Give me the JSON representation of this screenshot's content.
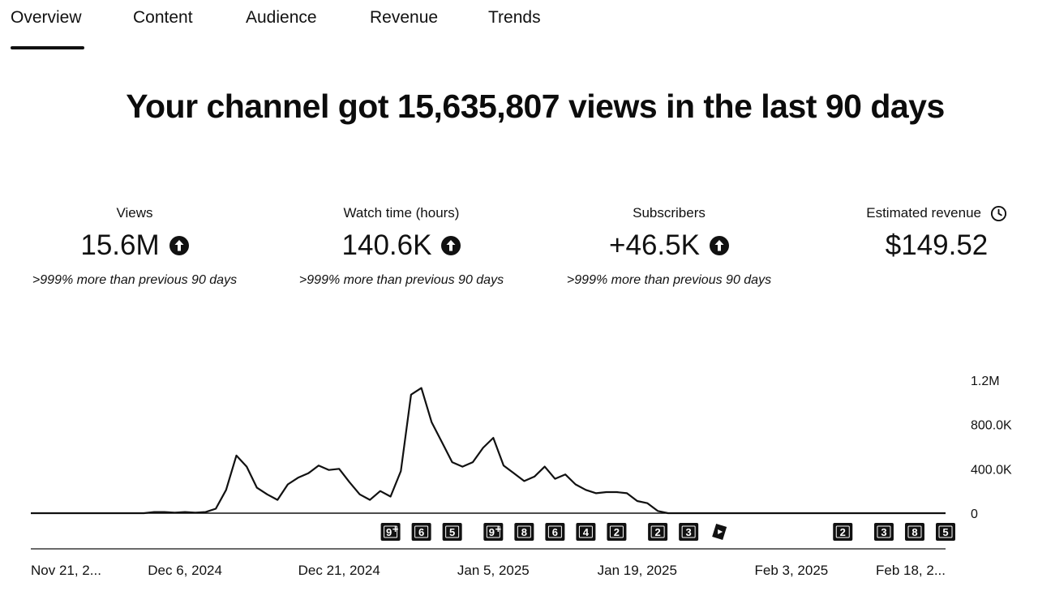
{
  "tabs": [
    {
      "label": "Overview",
      "active": true
    },
    {
      "label": "Content"
    },
    {
      "label": "Audience"
    },
    {
      "label": "Revenue"
    },
    {
      "label": "Trends"
    }
  ],
  "headline": "Your channel got 15,635,807 views in the last 90 days",
  "metrics": {
    "views": {
      "label": "Views",
      "value": "15.6M",
      "trend_icon": "arrow-up-circle-icon",
      "comparison": ">999% more than previous 90 days"
    },
    "watch_time": {
      "label": "Watch time (hours)",
      "value": "140.6K",
      "trend_icon": "arrow-up-circle-icon",
      "comparison": ">999% more than previous 90 days"
    },
    "subscribers": {
      "label": "Subscribers",
      "value": "+46.5K",
      "trend_icon": "arrow-up-circle-icon",
      "comparison": ">999% more than previous 90 days"
    },
    "revenue": {
      "label": "Estimated revenue",
      "value": "$149.52",
      "info_icon": "clock-icon"
    }
  },
  "chart_data": {
    "type": "line",
    "ylabel": "",
    "xlabel": "",
    "ylim": [
      0,
      1200000
    ],
    "y_ticks": [
      {
        "value": 0,
        "label": "0"
      },
      {
        "value": 400000,
        "label": "400.0K"
      },
      {
        "value": 800000,
        "label": "800.0K"
      },
      {
        "value": 1200000,
        "label": "1.2M"
      }
    ],
    "x_ticks": [
      {
        "day": 0,
        "label": "Nov 21, 2..."
      },
      {
        "day": 15,
        "label": "Dec 6, 2024"
      },
      {
        "day": 30,
        "label": "Dec 21, 2024"
      },
      {
        "day": 45,
        "label": "Jan 5, 2025"
      },
      {
        "day": 59,
        "label": "Jan 19, 2025"
      },
      {
        "day": 74,
        "label": "Feb 3, 2025"
      },
      {
        "day": 89,
        "label": "Feb 18, 2..."
      }
    ],
    "series": [
      {
        "values": [
          0,
          0,
          0,
          0,
          0,
          0,
          0,
          0,
          0,
          0,
          0,
          0,
          10000,
          10000,
          5000,
          10000,
          5000,
          10000,
          40000,
          210000,
          520000,
          420000,
          230000,
          170000,
          120000,
          260000,
          320000,
          360000,
          430000,
          390000,
          400000,
          280000,
          170000,
          120000,
          200000,
          150000,
          380000,
          1070000,
          1130000,
          820000,
          640000,
          460000,
          420000,
          460000,
          590000,
          680000,
          430000,
          360000,
          290000,
          330000,
          420000,
          310000,
          350000,
          260000,
          210000,
          180000,
          190000,
          190000,
          180000,
          110000,
          90000,
          20000,
          0,
          0,
          0,
          0,
          0,
          0,
          0,
          0,
          0,
          0,
          0,
          0,
          0,
          0,
          0,
          0,
          0,
          0,
          0,
          0,
          0,
          0,
          0,
          0,
          0,
          0,
          0,
          0
        ]
      }
    ],
    "markers": [
      {
        "day": 35,
        "label": "9",
        "type": "multi"
      },
      {
        "day": 38,
        "label": "6",
        "type": "count"
      },
      {
        "day": 41,
        "label": "5",
        "type": "count"
      },
      {
        "day": 45,
        "label": "9",
        "type": "multi"
      },
      {
        "day": 48,
        "label": "8",
        "type": "count"
      },
      {
        "day": 51,
        "label": "6",
        "type": "count"
      },
      {
        "day": 54,
        "label": "4",
        "type": "count"
      },
      {
        "day": 57,
        "label": "2",
        "type": "count"
      },
      {
        "day": 61,
        "label": "2",
        "type": "count"
      },
      {
        "day": 64,
        "label": "3",
        "type": "count"
      },
      {
        "day": 67,
        "label": "",
        "type": "shorts"
      },
      {
        "day": 79,
        "label": "2",
        "type": "count"
      },
      {
        "day": 83,
        "label": "3",
        "type": "count"
      },
      {
        "day": 86,
        "label": "8",
        "type": "count"
      },
      {
        "day": 89,
        "label": "5",
        "type": "count"
      }
    ]
  }
}
